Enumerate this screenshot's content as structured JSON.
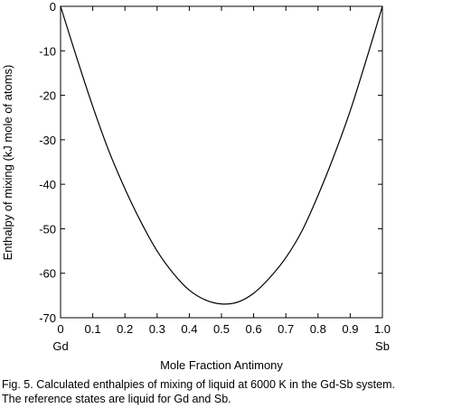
{
  "chart_data": {
    "type": "line",
    "title": "",
    "xlabel": "Mole  Fraction Antimony",
    "ylabel": "Enthalpy of mixing (kJ mole of atoms)",
    "xlim": [
      0,
      1.0
    ],
    "ylim": [
      -70,
      0
    ],
    "x_ticks": [
      0,
      0.1,
      0.2,
      0.3,
      0.4,
      0.5,
      0.6,
      0.7,
      0.8,
      0.9,
      1.0
    ],
    "x_tick_labels": [
      "0",
      "0.1",
      "0.2",
      "0.3",
      "0.4",
      "0.5",
      "0.6",
      "0.7",
      "0.8",
      "0.9",
      "1.0"
    ],
    "y_ticks": [
      0,
      -10,
      -20,
      -30,
      -40,
      -50,
      -60,
      -70
    ],
    "y_tick_labels": [
      "0",
      "-10",
      "-20",
      "-30",
      "-40",
      "-50",
      "-60",
      "-70"
    ],
    "endpoint_labels": {
      "left": "Gd",
      "right": "Sb"
    },
    "grid": false,
    "series": [
      {
        "color": "#000000",
        "x": [
          0,
          0.05,
          0.1,
          0.15,
          0.2,
          0.25,
          0.3,
          0.35,
          0.4,
          0.45,
          0.5,
          0.55,
          0.6,
          0.65,
          0.7,
          0.75,
          0.8,
          0.85,
          0.9,
          0.95,
          1.0
        ],
        "y": [
          0,
          -11.5,
          -22.5,
          -32.5,
          -41.0,
          -48.5,
          -55.0,
          -60.0,
          -63.8,
          -66.0,
          -66.9,
          -66.5,
          -64.5,
          -61.0,
          -56.5,
          -50.5,
          -42.5,
          -33.5,
          -23.5,
          -12.0,
          0
        ]
      }
    ]
  },
  "caption": "Fig. 5. Calculated enthalpies of mixing of liquid at 6000 K in the Gd-Sb system.\nThe reference states are liquid for Gd and Sb."
}
